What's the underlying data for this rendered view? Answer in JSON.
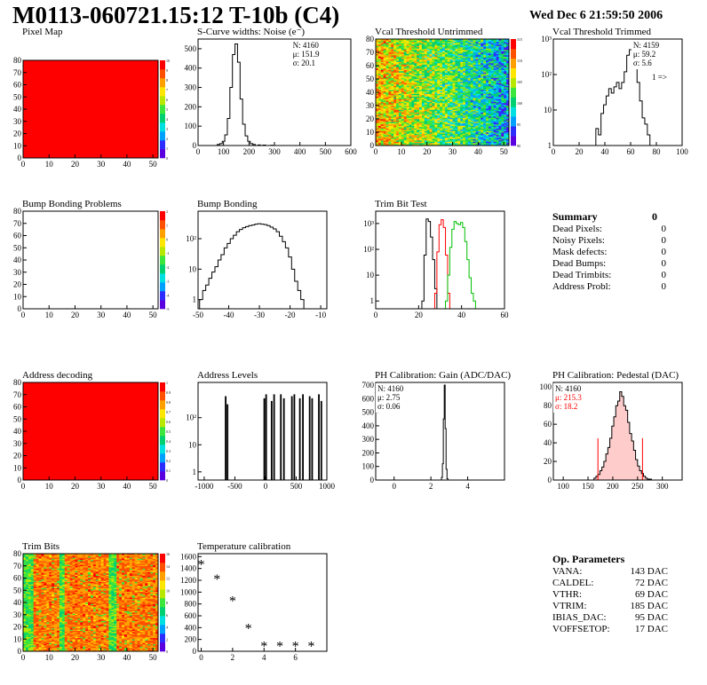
{
  "header": {
    "title": "M0113-060721.15:12 T-10b (C4)",
    "date": "Wed Dec  6 21:59:50 2006"
  },
  "colors": {
    "dead_fill": "#ff0000",
    "red_line": "#ff0000",
    "green_line": "#00c000",
    "palette": [
      "#5a00e0",
      "#2c2cff",
      "#00a0ff",
      "#00e0e0",
      "#00d070",
      "#3ce63c",
      "#b8e800",
      "#ffe600",
      "#ffa000",
      "#ff5000",
      "#ff0000"
    ]
  },
  "summary": {
    "title": "Summary",
    "value": "0",
    "rows": [
      {
        "label": "Dead Pixels:",
        "value": "0"
      },
      {
        "label": "Noisy Pixels:",
        "value": "0"
      },
      {
        "label": "Mask defects:",
        "value": "0"
      },
      {
        "label": "Dead Bumps:",
        "value": "0"
      },
      {
        "label": "Dead Trimbits:",
        "value": "0"
      },
      {
        "label": "Address Probl:",
        "value": "0"
      }
    ]
  },
  "op_params": {
    "title": "Op. Parameters",
    "rows": [
      {
        "label": "VANA:",
        "value": "143 DAC"
      },
      {
        "label": "CALDEL:",
        "value": "72 DAC"
      },
      {
        "label": "VTHR:",
        "value": "69 DAC"
      },
      {
        "label": "VTRIM:",
        "value": "185 DAC"
      },
      {
        "label": "IBIAS_DAC:",
        "value": "95 DAC"
      },
      {
        "label": "VOFFSETOP:",
        "value": "17 DAC"
      }
    ]
  },
  "chart_data": [
    {
      "id": "pixel_map",
      "type": "heatmap",
      "title": "Pixel Map",
      "fill": "uniform",
      "fill_value": 10,
      "xlim": [
        0,
        52
      ],
      "ylim": [
        0,
        80
      ],
      "xticks": [
        "0",
        "10",
        "20",
        "30",
        "40",
        "50"
      ],
      "yticks": [
        "0",
        "10",
        "20",
        "30",
        "40",
        "50",
        "60",
        "70",
        "80"
      ],
      "palette_labels": [
        "0",
        "1",
        "2",
        "3",
        "4",
        "5",
        "6",
        "7",
        "8",
        "9",
        "10"
      ]
    },
    {
      "id": "scurve_widths",
      "type": "histogram",
      "title": "S-Curve widths: Noise (e⁻)",
      "xlim": [
        0,
        600
      ],
      "ylim": [
        0,
        550
      ],
      "log": false,
      "xticks": [
        "0",
        "100",
        "200",
        "300",
        "400",
        "500",
        "600"
      ],
      "yticks": [
        "0",
        "100",
        "200",
        "300",
        "400",
        "500"
      ],
      "stats": [
        "N: 4160",
        "μ: 151.9",
        "σ: 20.1"
      ],
      "bins": [
        [
          80,
          5
        ],
        [
          90,
          10
        ],
        [
          100,
          22
        ],
        [
          110,
          55
        ],
        [
          120,
          140
        ],
        [
          130,
          300
        ],
        [
          140,
          470
        ],
        [
          150,
          525
        ],
        [
          160,
          430
        ],
        [
          170,
          240
        ],
        [
          180,
          110
        ],
        [
          190,
          50
        ],
        [
          200,
          22
        ],
        [
          210,
          10
        ],
        [
          220,
          5
        ],
        [
          240,
          3
        ],
        [
          260,
          2
        ],
        [
          290,
          1
        ]
      ],
      "bin_width": 10
    },
    {
      "id": "vcal_untrimmed",
      "type": "heatmap",
      "title": "Vcal Threshold Untrimmed",
      "fill": "noisy_gradient",
      "xlim": [
        0,
        52
      ],
      "ylim": [
        0,
        80
      ],
      "xticks": [
        "0",
        "10",
        "20",
        "30",
        "40",
        "50"
      ],
      "yticks": [
        "0",
        "10",
        "20",
        "30",
        "40",
        "50",
        "60",
        "70",
        "80"
      ],
      "palette_labels": [
        "90",
        "95",
        "100",
        "105",
        "110",
        "115"
      ]
    },
    {
      "id": "vcal_trimmed",
      "type": "histogram",
      "title": "Vcal Threshold Trimmed",
      "xlim": [
        0,
        100
      ],
      "ylim": [
        1,
        1000
      ],
      "log": true,
      "xticks": [
        "0",
        "20",
        "40",
        "60",
        "80",
        "100"
      ],
      "yticks": [
        "1",
        "10",
        "10²",
        "10³"
      ],
      "stats": [
        "N: 4159",
        "μ: 59.2",
        "σ: 5.6"
      ],
      "note": "1 =>",
      "bins": [
        [
          28,
          1
        ],
        [
          34,
          3
        ],
        [
          36,
          2
        ],
        [
          38,
          8
        ],
        [
          40,
          14
        ],
        [
          42,
          25
        ],
        [
          44,
          40
        ],
        [
          46,
          30
        ],
        [
          48,
          45
        ],
        [
          50,
          60
        ],
        [
          52,
          40
        ],
        [
          54,
          60
        ],
        [
          56,
          120
        ],
        [
          58,
          350
        ],
        [
          60,
          500
        ],
        [
          62,
          380
        ],
        [
          64,
          150
        ],
        [
          66,
          60
        ],
        [
          68,
          18
        ],
        [
          70,
          6
        ],
        [
          72,
          4
        ],
        [
          74,
          2
        ],
        [
          76,
          1
        ]
      ],
      "bin_width": 2
    },
    {
      "id": "bump_problems",
      "type": "heatmap",
      "title": "Bump Bonding Problems",
      "fill": "empty",
      "xlim": [
        0,
        52
      ],
      "ylim": [
        0,
        80
      ],
      "xticks": [
        "0",
        "10",
        "20",
        "30",
        "40",
        "50"
      ],
      "yticks": [
        "0",
        "10",
        "20",
        "30",
        "40",
        "50",
        "60",
        "70",
        "80"
      ],
      "palette_labels": [
        "-5",
        "-4",
        "-3",
        "-2",
        "-1",
        "0",
        "1",
        "2"
      ]
    },
    {
      "id": "bump_bonding",
      "type": "histogram",
      "title": "Bump Bonding",
      "xlim": [
        -50,
        -8
      ],
      "ylim": [
        0.5,
        800
      ],
      "log": true,
      "xticks": [
        "-50",
        "-40",
        "-30",
        "-20",
        "-10"
      ],
      "yticks": [
        "1",
        "10",
        "10²"
      ],
      "bins": [
        [
          -49,
          1
        ],
        [
          -48,
          2
        ],
        [
          -47,
          3
        ],
        [
          -46,
          5
        ],
        [
          -45,
          8
        ],
        [
          -44,
          12
        ],
        [
          -43,
          20
        ],
        [
          -42,
          30
        ],
        [
          -41,
          50
        ],
        [
          -40,
          70
        ],
        [
          -39,
          100
        ],
        [
          -38,
          130
        ],
        [
          -37,
          170
        ],
        [
          -36,
          200
        ],
        [
          -35,
          230
        ],
        [
          -34,
          250
        ],
        [
          -33,
          270
        ],
        [
          -32,
          280
        ],
        [
          -31,
          300
        ],
        [
          -30,
          310
        ],
        [
          -29,
          300
        ],
        [
          -28,
          290
        ],
        [
          -27,
          270
        ],
        [
          -26,
          240
        ],
        [
          -25,
          210
        ],
        [
          -24,
          170
        ],
        [
          -23,
          120
        ],
        [
          -22,
          80
        ],
        [
          -21,
          50
        ],
        [
          -20,
          25
        ],
        [
          -19,
          10
        ],
        [
          -18,
          4
        ],
        [
          -17,
          2
        ],
        [
          -16,
          1
        ]
      ],
      "bin_width": 1
    },
    {
      "id": "trim_bit_test",
      "type": "histogram",
      "title": "Trim Bit Test",
      "xlim": [
        0,
        60
      ],
      "ylim": [
        0.5,
        3000
      ],
      "log": true,
      "xticks": [
        "0",
        "20",
        "40",
        "60"
      ],
      "yticks": [
        "1",
        "10",
        "10²",
        "10³"
      ],
      "series": [
        {
          "name": "",
          "color": "#000000",
          "bins": [
            [
              22,
              1
            ],
            [
              23,
              60
            ],
            [
              24,
              1500
            ],
            [
              25,
              1200
            ],
            [
              26,
              300
            ],
            [
              27,
              40
            ],
            [
              28,
              3
            ]
          ]
        },
        {
          "name": "",
          "color": "#ff0000",
          "bins": [
            [
              28,
              2
            ],
            [
              29,
              80
            ],
            [
              30,
              900
            ],
            [
              31,
              1400
            ],
            [
              32,
              700
            ],
            [
              33,
              60
            ],
            [
              34,
              2
            ]
          ]
        },
        {
          "name": "",
          "color": "#00c000",
          "bins": [
            [
              33,
              1
            ],
            [
              34,
              10
            ],
            [
              35,
              120
            ],
            [
              36,
              600
            ],
            [
              37,
              1200
            ],
            [
              38,
              1000
            ],
            [
              39,
              900
            ],
            [
              40,
              1100
            ],
            [
              41,
              700
            ],
            [
              42,
              200
            ],
            [
              43,
              40
            ],
            [
              44,
              8
            ],
            [
              45,
              2
            ],
            [
              46,
              1
            ]
          ]
        }
      ],
      "bin_width": 1
    },
    {
      "id": "address_decoding",
      "type": "heatmap",
      "title": "Address decoding",
      "fill": "uniform",
      "fill_value": 1,
      "xlim": [
        0,
        52
      ],
      "ylim": [
        0,
        80
      ],
      "xticks": [
        "0",
        "10",
        "20",
        "30",
        "40",
        "50"
      ],
      "yticks": [
        "0",
        "10",
        "20",
        "30",
        "40",
        "50",
        "60",
        "70",
        "80"
      ],
      "palette_labels": [
        "0",
        "0.1",
        "0.2",
        "0.3",
        "0.4",
        "0.5",
        "0.6",
        "0.7",
        "0.8",
        "0.9",
        "1"
      ]
    },
    {
      "id": "address_levels",
      "type": "histogram",
      "title": "Address Levels",
      "xlim": [
        -1100,
        1000
      ],
      "ylim": [
        0.5,
        2000
      ],
      "log": true,
      "xticks": [
        "-1000",
        "-500",
        "0",
        "500",
        "1000"
      ],
      "yticks": [
        "1",
        "10",
        "10²"
      ],
      "bins": [
        [
          -650,
          600
        ],
        [
          -620,
          300
        ],
        [
          -20,
          500
        ],
        [
          10,
          700
        ],
        [
          100,
          400
        ],
        [
          140,
          700
        ],
        [
          250,
          700
        ],
        [
          300,
          500
        ],
        [
          430,
          600
        ],
        [
          470,
          700
        ],
        [
          560,
          500
        ],
        [
          610,
          700
        ],
        [
          720,
          600
        ],
        [
          760,
          500
        ],
        [
          870,
          700
        ],
        [
          910,
          400
        ]
      ],
      "bin_width": 12
    },
    {
      "id": "ph_gain",
      "type": "histogram",
      "title": "PH Calibration: Gain (ADC/DAC)",
      "xlim": [
        -1,
        6
      ],
      "ylim": [
        0,
        720
      ],
      "log": false,
      "xticks": [
        "0",
        "2",
        "4"
      ],
      "yticks": [
        "0",
        "100",
        "200",
        "300",
        "400",
        "500",
        "600",
        "700"
      ],
      "stats": [
        "N: 4160",
        "μ: 2.75",
        "σ: 0.06"
      ],
      "bins": [
        [
          2.6,
          20
        ],
        [
          2.65,
          120
        ],
        [
          2.7,
          450
        ],
        [
          2.75,
          700
        ],
        [
          2.8,
          380
        ],
        [
          2.85,
          80
        ],
        [
          2.9,
          10
        ]
      ],
      "bin_width": 0.05
    },
    {
      "id": "ph_pedestal",
      "type": "histogram",
      "title": "PH Calibration: Pedestal (DAC)",
      "xlim": [
        80,
        340
      ],
      "ylim": [
        0,
        105
      ],
      "log": false,
      "xticks": [
        "100",
        "150",
        "200",
        "250",
        "300"
      ],
      "yticks": [
        "0",
        "20",
        "40",
        "60",
        "80",
        "100"
      ],
      "stats": [
        "N: 4160"
      ],
      "stats_red": [
        "μ: 215.3",
        "σ: 18.2"
      ],
      "cut_lines": [
        170,
        260
      ],
      "bins": [
        [
          164,
          2
        ],
        [
          168,
          4
        ],
        [
          172,
          6
        ],
        [
          176,
          10
        ],
        [
          180,
          14
        ],
        [
          184,
          20
        ],
        [
          188,
          28
        ],
        [
          192,
          35
        ],
        [
          196,
          45
        ],
        [
          200,
          58
        ],
        [
          204,
          68
        ],
        [
          208,
          80
        ],
        [
          212,
          85
        ],
        [
          216,
          95
        ],
        [
          220,
          90
        ],
        [
          224,
          80
        ],
        [
          228,
          75
        ],
        [
          232,
          62
        ],
        [
          236,
          50
        ],
        [
          240,
          42
        ],
        [
          244,
          32
        ],
        [
          248,
          22
        ],
        [
          252,
          15
        ],
        [
          256,
          10
        ],
        [
          260,
          7
        ],
        [
          264,
          4
        ],
        [
          268,
          2
        ],
        [
          272,
          1
        ],
        [
          276,
          1
        ]
      ],
      "bin_width": 4
    },
    {
      "id": "trim_bits",
      "type": "heatmap",
      "title": "Trim Bits",
      "fill": "trimbits",
      "xlim": [
        0,
        52
      ],
      "ylim": [
        0,
        80
      ],
      "xticks": [
        "0",
        "10",
        "20",
        "30",
        "40",
        "50"
      ],
      "yticks": [
        "0",
        "10",
        "20",
        "30",
        "40",
        "50",
        "60",
        "70",
        "80"
      ],
      "palette_labels": [
        "0",
        "2",
        "4",
        "6",
        "8",
        "10",
        "12",
        "14",
        "16"
      ]
    },
    {
      "id": "temperature",
      "type": "scatter",
      "title": "Temperature calibration",
      "xlim": [
        -0.2,
        8
      ],
      "ylim": [
        0,
        1650
      ],
      "xticks": [
        "0",
        "2",
        "4",
        "6"
      ],
      "yticks": [
        "0",
        "200",
        "400",
        "600",
        "800",
        "1000",
        "1200",
        "1400",
        "1600"
      ],
      "points": [
        [
          0,
          1480
        ],
        [
          1,
          1230
        ],
        [
          2,
          860
        ],
        [
          3,
          400
        ],
        [
          4,
          100
        ],
        [
          5,
          100
        ],
        [
          6,
          100
        ],
        [
          7,
          100
        ]
      ]
    }
  ]
}
